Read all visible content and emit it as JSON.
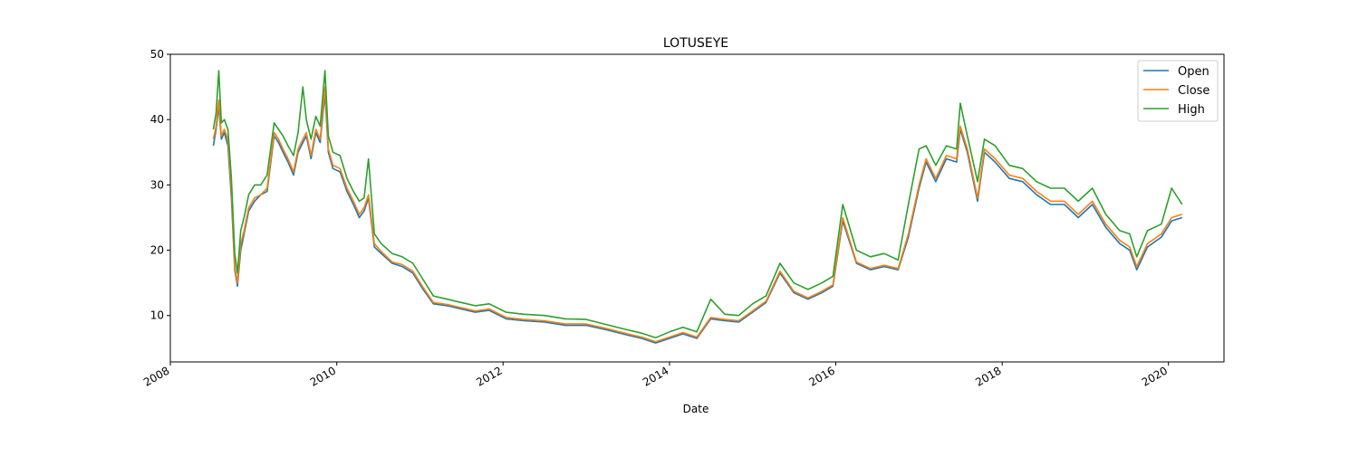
{
  "chart_data": {
    "type": "line",
    "title": "LOTUSEYE",
    "xlabel": "Date",
    "ylabel": "",
    "xlim": [
      "2008-01-01",
      "2020-09-01"
    ],
    "ylim": [
      2.9,
      50.0
    ],
    "x_ticks": [
      "2008",
      "2010",
      "2012",
      "2014",
      "2016",
      "2018",
      "2020"
    ],
    "y_ticks": [
      10,
      20,
      30,
      40,
      50
    ],
    "grid": false,
    "legend_position": "top-right",
    "legend": [
      "Open",
      "Close",
      "High"
    ],
    "x": [
      "2008-07-08",
      "2008-07-20",
      "2008-08-01",
      "2008-08-12",
      "2008-08-25",
      "2008-09-10",
      "2008-09-25",
      "2008-10-10",
      "2008-10-22",
      "2008-11-05",
      "2008-11-20",
      "2008-12-10",
      "2009-01-05",
      "2009-02-01",
      "2009-03-01",
      "2009-04-01",
      "2009-04-20",
      "2009-05-10",
      "2009-06-01",
      "2009-06-25",
      "2009-07-15",
      "2009-08-05",
      "2009-08-20",
      "2009-09-10",
      "2009-10-01",
      "2009-10-20",
      "2009-11-10",
      "2009-11-25",
      "2009-12-15",
      "2010-01-15",
      "2010-02-15",
      "2010-03-15",
      "2010-04-10",
      "2010-05-01",
      "2010-05-20",
      "2010-06-15",
      "2010-07-15",
      "2010-09-01",
      "2010-10-15",
      "2010-12-01",
      "2011-01-15",
      "2011-03-01",
      "2011-05-01",
      "2011-07-01",
      "2011-09-01",
      "2011-11-01",
      "2012-01-15",
      "2012-04-01",
      "2012-07-01",
      "2012-10-01",
      "2013-01-01",
      "2013-04-01",
      "2013-07-01",
      "2013-09-01",
      "2013-11-01",
      "2014-01-01",
      "2014-03-01",
      "2014-05-01",
      "2014-07-01",
      "2014-09-01",
      "2014-11-01",
      "2015-01-01",
      "2015-03-01",
      "2015-05-01",
      "2015-07-01",
      "2015-09-01",
      "2015-11-01",
      "2015-12-20",
      "2016-02-01",
      "2016-04-01",
      "2016-06-01",
      "2016-08-01",
      "2016-10-01",
      "2016-11-15",
      "2017-01-01",
      "2017-02-01",
      "2017-03-15",
      "2017-05-01",
      "2017-06-15",
      "2017-07-01",
      "2017-08-01",
      "2017-09-15",
      "2017-10-15",
      "2017-12-01",
      "2018-02-01",
      "2018-04-01",
      "2018-06-01",
      "2018-08-01",
      "2018-10-01",
      "2018-12-01",
      "2019-02-01",
      "2019-04-01",
      "2019-06-01",
      "2019-07-15",
      "2019-08-15",
      "2019-10-01",
      "2019-12-01",
      "2020-01-15",
      "2020-03-01"
    ],
    "series": [
      {
        "name": "Open",
        "color": "#1f77b4",
        "values": [
          36.0,
          38.5,
          42.0,
          37.0,
          38.0,
          36.0,
          28.0,
          17.0,
          14.5,
          20.0,
          22.5,
          26.0,
          27.5,
          28.5,
          29.0,
          37.5,
          36.5,
          35.0,
          33.5,
          31.5,
          35.0,
          36.5,
          37.5,
          34.0,
          38.0,
          36.5,
          44.0,
          35.0,
          32.5,
          32.0,
          29.0,
          27.0,
          25.0,
          26.0,
          28.0,
          20.5,
          19.5,
          18.0,
          17.5,
          16.5,
          14.0,
          11.8,
          11.5,
          11.0,
          10.5,
          10.8,
          9.5,
          9.2,
          9.0,
          8.5,
          8.5,
          7.8,
          7.0,
          6.5,
          5.8,
          6.5,
          7.2,
          6.5,
          9.5,
          9.2,
          9.0,
          10.5,
          12.0,
          16.5,
          13.5,
          12.5,
          13.5,
          14.5,
          24.5,
          18.0,
          17.0,
          17.5,
          17.0,
          22.0,
          29.5,
          33.5,
          30.5,
          34.0,
          33.5,
          38.5,
          35.0,
          27.5,
          35.0,
          33.5,
          31.0,
          30.5,
          28.5,
          27.0,
          27.0,
          25.0,
          27.0,
          23.5,
          21.0,
          20.0,
          17.0,
          20.5,
          22.0,
          24.5,
          25.0
        ]
      },
      {
        "name": "Close",
        "color": "#ff7f0e",
        "values": [
          37.0,
          39.0,
          43.0,
          37.5,
          38.5,
          37.0,
          29.0,
          17.5,
          15.0,
          21.0,
          23.0,
          26.5,
          28.0,
          28.5,
          29.5,
          38.0,
          37.0,
          35.5,
          34.0,
          32.0,
          35.5,
          37.0,
          38.0,
          34.5,
          38.5,
          37.0,
          45.0,
          35.5,
          33.0,
          32.5,
          29.5,
          27.5,
          25.5,
          26.5,
          28.5,
          21.0,
          19.8,
          18.2,
          17.8,
          16.8,
          14.3,
          12.0,
          11.7,
          11.2,
          10.7,
          11.0,
          9.7,
          9.4,
          9.2,
          8.7,
          8.7,
          8.0,
          7.2,
          6.7,
          6.0,
          6.7,
          7.4,
          6.7,
          9.7,
          9.4,
          9.2,
          10.7,
          12.2,
          16.8,
          13.7,
          12.7,
          13.7,
          14.7,
          25.0,
          18.2,
          17.2,
          17.7,
          17.2,
          22.5,
          30.0,
          34.0,
          31.0,
          34.5,
          34.0,
          39.0,
          35.5,
          28.0,
          35.5,
          34.0,
          31.5,
          31.0,
          29.0,
          27.5,
          27.5,
          25.5,
          27.5,
          24.0,
          21.5,
          20.5,
          17.5,
          21.0,
          22.5,
          25.0,
          25.5
        ]
      },
      {
        "name": "High",
        "color": "#2ca02c",
        "values": [
          38.5,
          41.0,
          47.5,
          39.5,
          40.0,
          38.5,
          31.0,
          19.5,
          16.5,
          23.0,
          25.0,
          28.5,
          30.0,
          30.0,
          31.5,
          39.5,
          38.5,
          37.5,
          36.0,
          34.5,
          38.0,
          45.0,
          40.0,
          37.0,
          40.5,
          39.0,
          47.5,
          37.5,
          35.0,
          34.5,
          31.0,
          29.0,
          27.5,
          28.0,
          34.0,
          22.5,
          21.0,
          19.5,
          19.0,
          18.0,
          15.5,
          13.0,
          12.5,
          12.0,
          11.5,
          11.8,
          10.5,
          10.2,
          10.0,
          9.5,
          9.4,
          8.6,
          7.8,
          7.3,
          6.6,
          7.5,
          8.2,
          7.5,
          12.5,
          10.2,
          10.0,
          11.8,
          13.0,
          18.0,
          15.0,
          14.0,
          15.0,
          16.0,
          27.0,
          20.0,
          19.0,
          19.5,
          18.5,
          27.0,
          35.5,
          36.0,
          33.0,
          36.0,
          35.5,
          42.5,
          37.5,
          30.5,
          37.0,
          36.0,
          33.0,
          32.5,
          30.5,
          29.5,
          29.5,
          27.5,
          29.5,
          25.5,
          23.0,
          22.5,
          19.0,
          23.0,
          24.0,
          29.5,
          27.0
        ]
      }
    ]
  }
}
